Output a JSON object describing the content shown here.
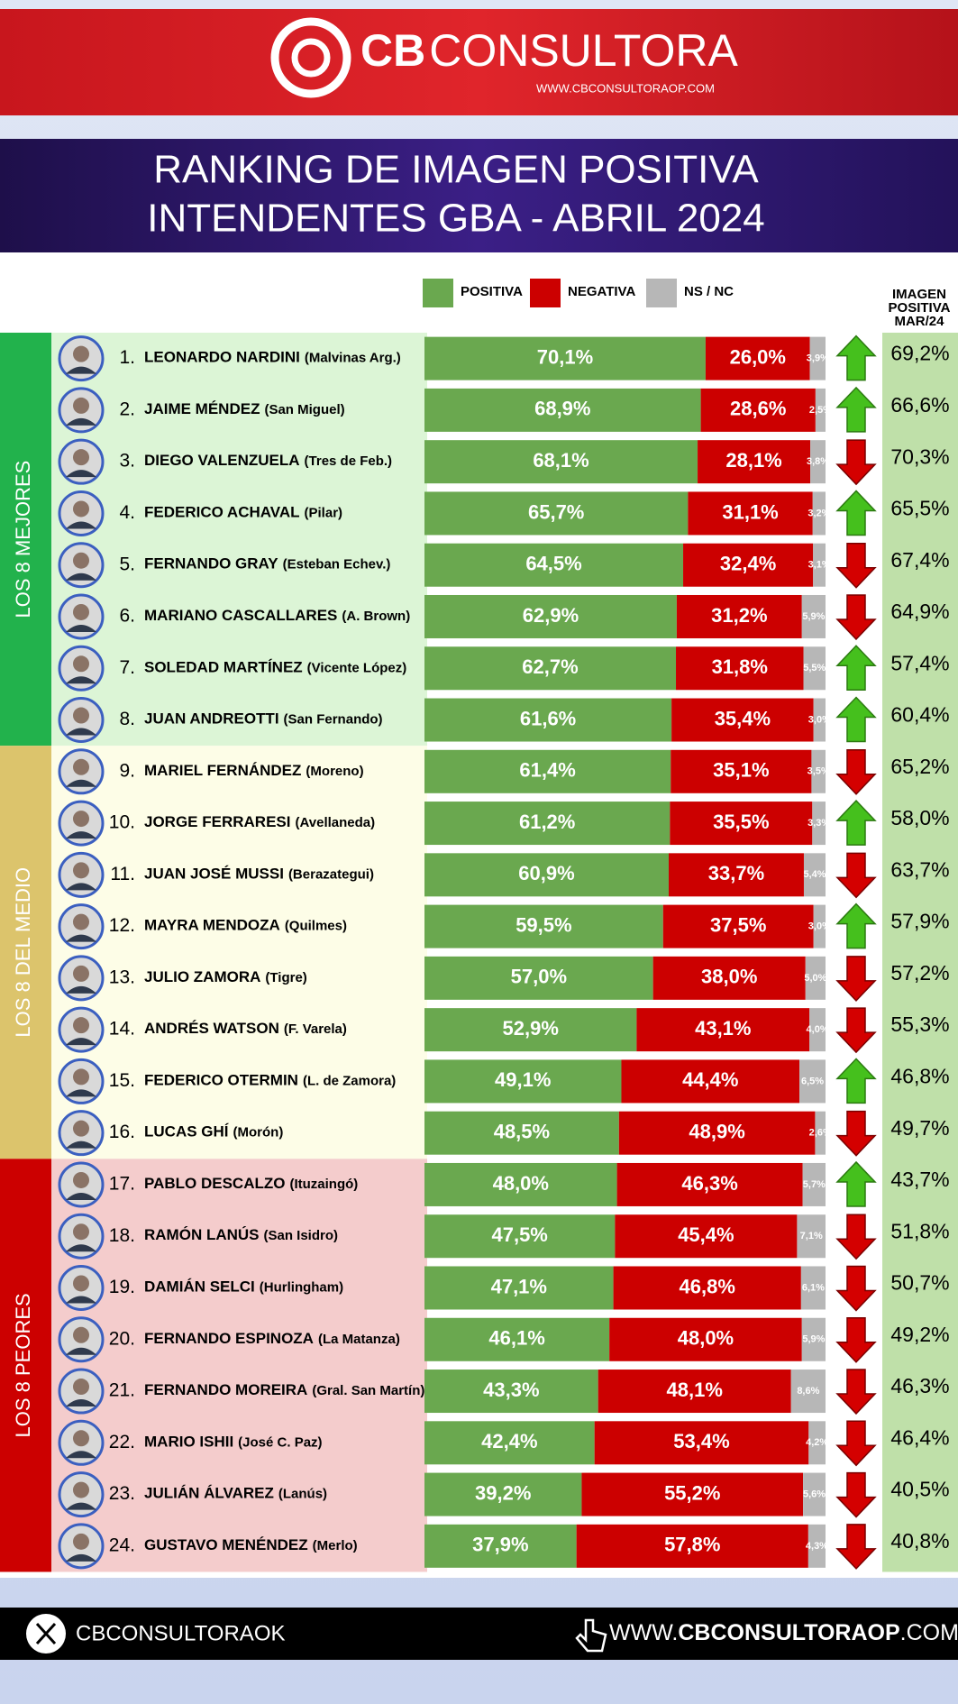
{
  "header": {
    "brand_bold": "CB",
    "brand_light": "CONSULTORA",
    "url": "WWW.CBCONSULTORAOP.COM"
  },
  "chart_data": {
    "type": "stacked-bar",
    "title": [
      "RANKING DE IMAGEN POSITIVA",
      "INTENDENTES GBA - ABRIL 2024"
    ],
    "xlim": [
      0,
      100
    ],
    "ranks": [
      "1.",
      "2.",
      "3.",
      "4.",
      "5.",
      "6.",
      "7.",
      "8.",
      "9.",
      "10.",
      "11.",
      "12.",
      "13.",
      "14.",
      "15.",
      "16.",
      "17.",
      "18.",
      "19.",
      "20.",
      "21.",
      "22.",
      "23.",
      "24."
    ],
    "categories": [
      "LEONARDO NARDINI",
      "JAIME MÉNDEZ",
      "DIEGO VALENZUELA",
      "FEDERICO ACHAVAL",
      "FERNANDO GRAY",
      "MARIANO CASCALLARES",
      "SOLEDAD MARTÍNEZ",
      "JUAN ANDREOTTI",
      "MARIEL FERNÁNDEZ",
      "JORGE FERRARESI",
      "JUAN JOSÉ MUSSI",
      "MAYRA MENDOZA",
      "JULIO ZAMORA",
      "ANDRÉS WATSON",
      "FEDERICO OTERMIN",
      "LUCAS GHÍ",
      "PABLO DESCALZO",
      "RAMÓN LANÚS",
      "DAMIÁN SELCI",
      "FERNANDO ESPINOZA",
      "FERNANDO MOREIRA",
      "MARIO ISHII",
      "JULIÁN ÁLVAREZ",
      "GUSTAVO MENÉNDEZ"
    ],
    "districts": [
      "(Malvinas Arg.)",
      "(San Miguel)",
      "(Tres de Feb.)",
      "(Pilar)",
      "(Esteban Echev.)",
      "(A. Brown)",
      "(Vicente López)",
      "(San Fernando)",
      "(Moreno)",
      "(Avellaneda)",
      "(Berazategui)",
      "(Quilmes)",
      "(Tigre)",
      "(F. Varela)",
      "(L. de Zamora)",
      "(Morón)",
      "(Ituzaingó)",
      "(San Isidro)",
      "(Hurlingham)",
      "(La Matanza)",
      "(Gral. San Martín)",
      "(José C. Paz)",
      "(Lanús)",
      "(Merlo)"
    ],
    "groups": [
      {
        "label": "LOS 8 MEJORES",
        "size": 8,
        "color": "#22b24c",
        "background": "#dcf5d6"
      },
      {
        "label": "LOS 8 DEL MEDIO",
        "size": 8,
        "color": "#dcc46c",
        "background": "#fdfde7"
      },
      {
        "label": "LOS 8 PEORES",
        "size": 8,
        "color": "#cc0000",
        "background": "#f4cccc"
      }
    ],
    "series": [
      {
        "name": "POSITIVA",
        "color": "#6aa84f",
        "values": [
          70.1,
          68.9,
          68.1,
          65.7,
          64.5,
          62.9,
          62.7,
          61.6,
          61.4,
          61.2,
          60.9,
          59.5,
          57.0,
          52.9,
          49.1,
          48.5,
          48.0,
          47.5,
          47.1,
          46.1,
          43.3,
          42.4,
          39.2,
          37.9
        ],
        "value_labels": [
          "70,1%",
          "68,9%",
          "68,1%",
          "65,7%",
          "64,5%",
          "62,9%",
          "62,7%",
          "61,6%",
          "61,4%",
          "61,2%",
          "60,9%",
          "59,5%",
          "57,0%",
          "52,9%",
          "49,1%",
          "48,5%",
          "48,0%",
          "47,5%",
          "47,1%",
          "46,1%",
          "43,3%",
          "42,4%",
          "39,2%",
          "37,9%"
        ]
      },
      {
        "name": "NEGATIVA",
        "color": "#cc0000",
        "values": [
          26.0,
          28.6,
          28.1,
          31.1,
          32.4,
          31.2,
          31.8,
          35.4,
          35.1,
          35.5,
          33.7,
          37.5,
          38.0,
          43.1,
          44.4,
          48.9,
          46.3,
          45.4,
          46.8,
          48.0,
          48.1,
          53.4,
          55.2,
          57.8
        ],
        "value_labels": [
          "26,0%",
          "28,6%",
          "28,1%",
          "31,1%",
          "32,4%",
          "31,2%",
          "31,8%",
          "35,4%",
          "35,1%",
          "35,5%",
          "33,7%",
          "37,5%",
          "38,0%",
          "43,1%",
          "44,4%",
          "48,9%",
          "46,3%",
          "45,4%",
          "46,8%",
          "48,0%",
          "48,1%",
          "53,4%",
          "55,2%",
          "57,8%"
        ]
      },
      {
        "name": "NS / NC",
        "color": "#b7b7b7",
        "values": [
          3.9,
          2.5,
          3.8,
          3.2,
          3.1,
          5.9,
          5.5,
          3.0,
          3.5,
          3.3,
          5.4,
          3.0,
          5.0,
          4.0,
          6.5,
          2.6,
          5.7,
          7.1,
          6.1,
          5.9,
          8.6,
          4.2,
          5.6,
          4.3
        ],
        "value_labels": [
          "3,9%",
          "2,5%",
          "3,8%",
          "3,2%",
          "3,1%",
          "5,9%",
          "5,5%",
          "3,0%",
          "3,5%",
          "3,3%",
          "5,4%",
          "3,0%",
          "5,0%",
          "4,0%",
          "6,5%",
          "2,6%",
          "5,7%",
          "7,1%",
          "6,1%",
          "5,9%",
          "8,6%",
          "4,2%",
          "5,6%",
          "4,3%"
        ]
      }
    ],
    "previous": {
      "title": [
        "IMAGEN",
        "POSITIVA",
        "MAR/24"
      ],
      "color": "#bfe0a9",
      "values": [
        69.2,
        66.6,
        70.3,
        65.5,
        67.4,
        64.9,
        57.4,
        60.4,
        65.2,
        58.0,
        63.7,
        57.9,
        57.2,
        55.3,
        46.8,
        49.7,
        43.7,
        51.8,
        50.7,
        49.2,
        46.3,
        46.4,
        40.5,
        40.8
      ],
      "value_labels": [
        "69,2%",
        "66,6%",
        "70,3%",
        "65,5%",
        "67,4%",
        "64,9%",
        "57,4%",
        "60,4%",
        "65,2%",
        "58,0%",
        "63,7%",
        "57,9%",
        "57,2%",
        "55,3%",
        "46,8%",
        "49,7%",
        "43,7%",
        "51,8%",
        "50,7%",
        "49,2%",
        "46,3%",
        "46,4%",
        "40,5%",
        "40,8%"
      ]
    },
    "legend": "top"
  },
  "footer": {
    "handle": "CBCONSULTORAOK",
    "url_start": "WWW.",
    "url_bold": "CBCONSULTORAOP",
    "url_end": ".COM"
  }
}
